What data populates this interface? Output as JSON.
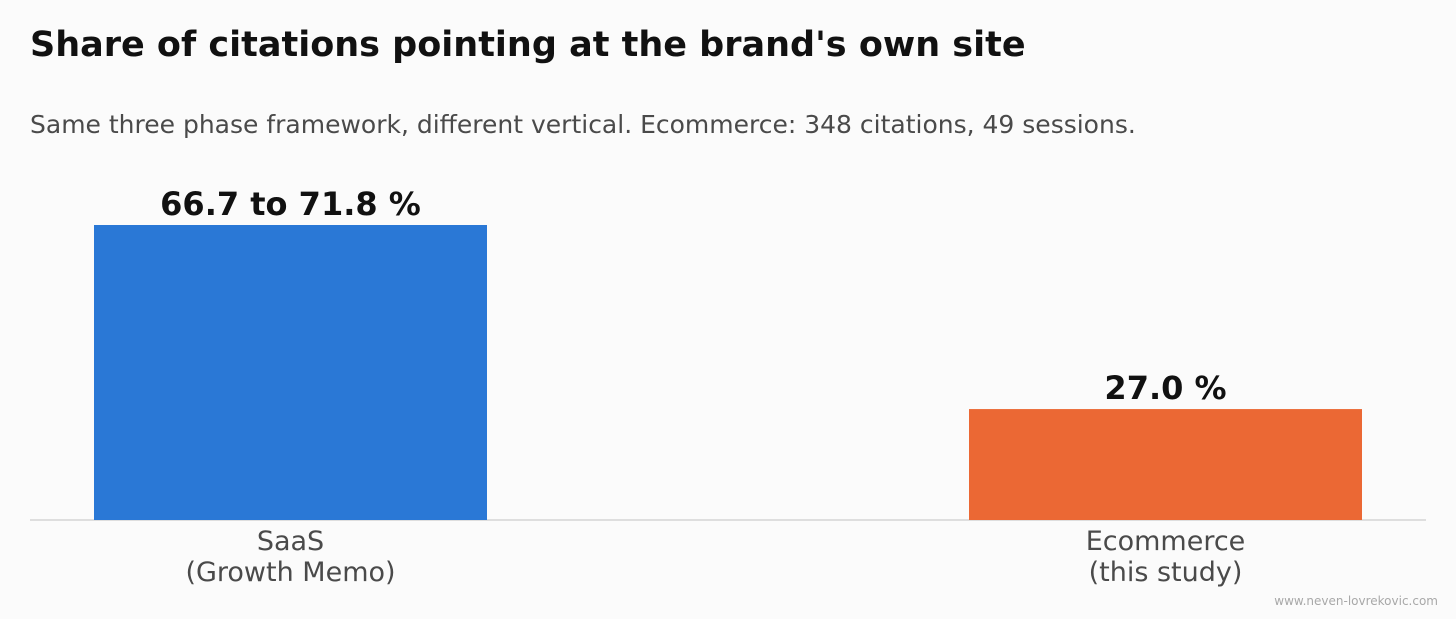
{
  "chart_data": {
    "type": "bar",
    "title": "Share of citations pointing at the brand's own site",
    "subtitle": "Same three phase framework, different vertical. Ecommerce: 348 citations, 49 sessions.",
    "categories": [
      {
        "lines": [
          "SaaS",
          "(Growth Memo)"
        ]
      },
      {
        "lines": [
          "Ecommerce",
          "(this study)"
        ]
      }
    ],
    "values": [
      71.8,
      27.0
    ],
    "value_labels": [
      "66.7 to 71.8 %",
      "27.0 %"
    ],
    "colors": [
      "#2a78d6",
      "#eb6834"
    ],
    "ylim": [
      0,
      71.8
    ],
    "grid": false,
    "xlabel": "",
    "ylabel": ""
  },
  "watermark": "www.neven-lovrekovic.com"
}
